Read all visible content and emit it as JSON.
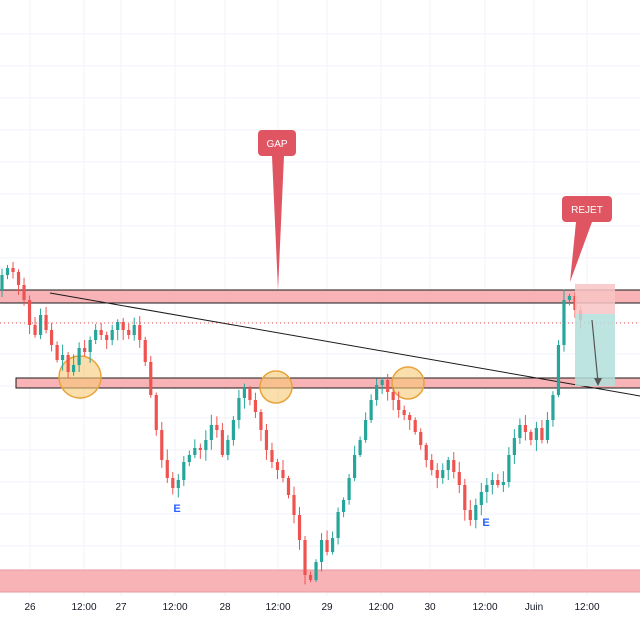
{
  "chart_data": {
    "type": "candlestick",
    "x_axis": {
      "ticks": [
        "26",
        "12:00",
        "27",
        "12:00",
        "28",
        "12:00",
        "29",
        "12:00",
        "30",
        "12:00",
        "Juin",
        "12:00"
      ]
    },
    "grid": true,
    "colors": {
      "up": "#26a69a",
      "down": "#ef5350",
      "zone_fill": "#f8b3b7",
      "zone_stroke": "#1a1a1a",
      "circle_fill": "#f7c873",
      "circle_stroke": "#e8a33a",
      "callout": "#e05562",
      "trendline": "#1a1a1a",
      "e_marker": "#2962ff"
    },
    "annotations": {
      "gap": "GAP",
      "rejet": "REJET",
      "e_markers": [
        "E",
        "E"
      ]
    },
    "candles_path": [
      [
        0,
        290
      ],
      [
        1,
        275
      ],
      [
        2,
        268
      ],
      [
        3,
        272
      ],
      [
        4,
        285
      ],
      [
        5,
        300
      ],
      [
        6,
        325
      ],
      [
        7,
        335
      ],
      [
        8,
        315
      ],
      [
        9,
        330
      ],
      [
        10,
        345
      ],
      [
        11,
        360
      ],
      [
        12,
        355
      ],
      [
        13,
        372
      ],
      [
        14,
        365
      ],
      [
        15,
        348
      ],
      [
        16,
        352
      ],
      [
        17,
        340
      ],
      [
        18,
        330
      ],
      [
        19,
        335
      ],
      [
        20,
        340
      ],
      [
        21,
        330
      ],
      [
        22,
        322
      ],
      [
        23,
        330
      ],
      [
        24,
        335
      ],
      [
        25,
        325
      ],
      [
        26,
        340
      ],
      [
        27,
        362
      ],
      [
        28,
        395
      ],
      [
        29,
        430
      ],
      [
        30,
        460
      ],
      [
        31,
        478
      ],
      [
        32,
        488
      ],
      [
        33,
        480
      ],
      [
        34,
        462
      ],
      [
        35,
        455
      ],
      [
        36,
        448
      ],
      [
        37,
        450
      ],
      [
        38,
        440
      ],
      [
        39,
        425
      ],
      [
        40,
        430
      ],
      [
        41,
        455
      ],
      [
        42,
        440
      ],
      [
        43,
        420
      ],
      [
        44,
        398
      ],
      [
        45,
        388
      ],
      [
        46,
        400
      ],
      [
        47,
        412
      ],
      [
        48,
        430
      ],
      [
        49,
        450
      ],
      [
        50,
        462
      ],
      [
        51,
        470
      ],
      [
        52,
        478
      ],
      [
        53,
        495
      ],
      [
        54,
        515
      ],
      [
        55,
        540
      ],
      [
        56,
        575
      ],
      [
        57,
        580
      ],
      [
        58,
        562
      ],
      [
        59,
        540
      ],
      [
        60,
        552
      ],
      [
        61,
        538
      ],
      [
        62,
        512
      ],
      [
        63,
        500
      ],
      [
        64,
        478
      ],
      [
        65,
        455
      ],
      [
        66,
        440
      ],
      [
        67,
        420
      ],
      [
        68,
        400
      ],
      [
        69,
        385
      ],
      [
        70,
        380
      ],
      [
        71,
        392
      ],
      [
        72,
        400
      ],
      [
        73,
        410
      ],
      [
        74,
        415
      ],
      [
        75,
        420
      ],
      [
        76,
        432
      ],
      [
        77,
        445
      ],
      [
        78,
        460
      ],
      [
        79,
        470
      ],
      [
        80,
        478
      ],
      [
        81,
        470
      ],
      [
        82,
        460
      ],
      [
        83,
        472
      ],
      [
        84,
        485
      ],
      [
        85,
        510
      ],
      [
        86,
        520
      ],
      [
        87,
        505
      ],
      [
        88,
        492
      ],
      [
        89,
        485
      ],
      [
        90,
        480
      ],
      [
        91,
        485
      ],
      [
        92,
        482
      ],
      [
        93,
        455
      ],
      [
        94,
        438
      ],
      [
        95,
        425
      ],
      [
        96,
        432
      ],
      [
        97,
        440
      ],
      [
        98,
        428
      ],
      [
        99,
        440
      ],
      [
        100,
        420
      ],
      [
        101,
        395
      ],
      [
        102,
        345
      ],
      [
        103,
        300
      ],
      [
        104,
        296
      ],
      [
        105,
        310
      ],
      [
        106,
        320
      ]
    ]
  }
}
